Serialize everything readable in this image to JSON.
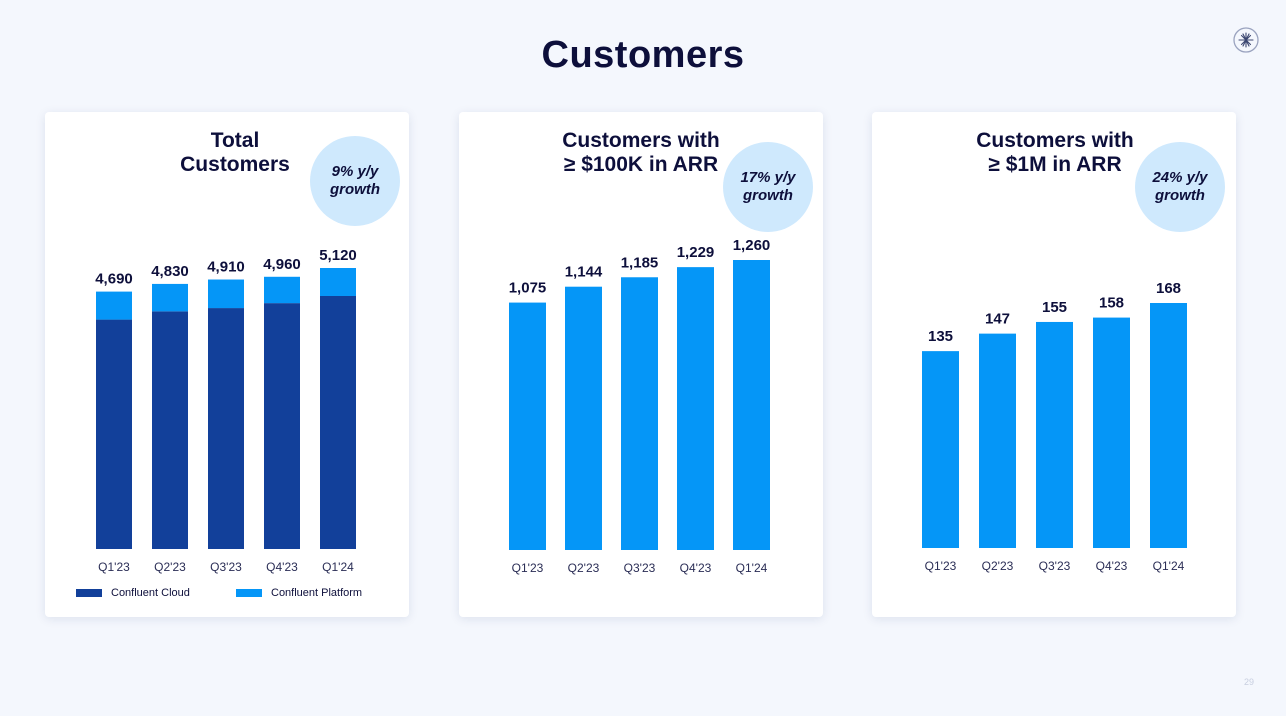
{
  "page": {
    "title": "Customers",
    "page_number": "29",
    "logo_icon": "confluent-spark-icon"
  },
  "colors": {
    "cloud": "#12409a",
    "platform": "#0596f7",
    "badge": "#cfe9fd",
    "text": "#0d0f3b"
  },
  "chart_data": [
    {
      "type": "bar",
      "stacked": true,
      "title": "Total\nCustomers",
      "badge": "9% y/y\ngrowth",
      "categories": [
        "Q1'23",
        "Q2'23",
        "Q3'23",
        "Q4'23",
        "Q1'24"
      ],
      "totals": [
        4690,
        4830,
        4910,
        4960,
        5120
      ],
      "total_labels": [
        "4,690",
        "4,830",
        "4,910",
        "4,960",
        "5,120"
      ],
      "series": [
        {
          "name": "Confluent Cloud",
          "values": [
            4180,
            4330,
            4390,
            4480,
            4610
          ]
        },
        {
          "name": "Confluent Platform",
          "values": [
            510,
            500,
            520,
            480,
            510
          ]
        }
      ],
      "ylim": [
        0,
        5120
      ],
      "legend": "bottom",
      "grid": false
    },
    {
      "type": "bar",
      "title": "Customers with\n≥ $100K in ARR",
      "badge": "17% y/y\ngrowth",
      "categories": [
        "Q1'23",
        "Q2'23",
        "Q3'23",
        "Q4'23",
        "Q1'24"
      ],
      "values": [
        1075,
        1144,
        1185,
        1229,
        1260
      ],
      "value_labels": [
        "1,075",
        "1,144",
        "1,185",
        "1,229",
        "1,260"
      ],
      "ylim": [
        0,
        1260
      ],
      "grid": false
    },
    {
      "type": "bar",
      "title": "Customers with\n≥ $1M in ARR",
      "badge": "24% y/y\ngrowth",
      "categories": [
        "Q1'23",
        "Q2'23",
        "Q3'23",
        "Q4'23",
        "Q1'24"
      ],
      "values": [
        135,
        147,
        155,
        158,
        168
      ],
      "value_labels": [
        "135",
        "147",
        "155",
        "158",
        "168"
      ],
      "ylim": [
        0,
        168
      ],
      "grid": false
    }
  ]
}
